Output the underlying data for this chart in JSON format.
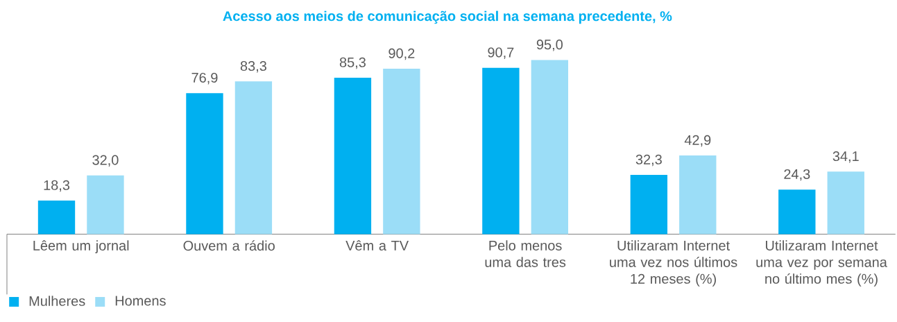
{
  "chart_data": {
    "type": "bar",
    "title": "Acesso aos meios de comunicação social na semana precedente, %",
    "categories": [
      "Lêem um jornal",
      "Ouvem a rádio",
      "Vêm a TV",
      "Pelo menos uma das tres",
      "Utilizaram Internet uma vez nos últimos 12 meses (%)",
      "Utilizaram Internet uma vez por semana no último mes (%)"
    ],
    "series": [
      {
        "name": "Mulheres",
        "color": "#00b0f0",
        "values": [
          18.3,
          76.9,
          85.3,
          90.7,
          32.3,
          24.3
        ],
        "value_labels": [
          "18,3",
          "76,9",
          "85,3",
          "90,7",
          "32,3",
          "24,3"
        ]
      },
      {
        "name": "Homens",
        "color": "#9bddf7",
        "values": [
          32.0,
          83.3,
          90.2,
          95.0,
          42.9,
          34.1
        ],
        "value_labels": [
          "32,0",
          "83,3",
          "90,2",
          "95,0",
          "42,9",
          "34,1"
        ]
      }
    ],
    "legend": "bottom left",
    "tick_labels": "x",
    "grid": false
  }
}
